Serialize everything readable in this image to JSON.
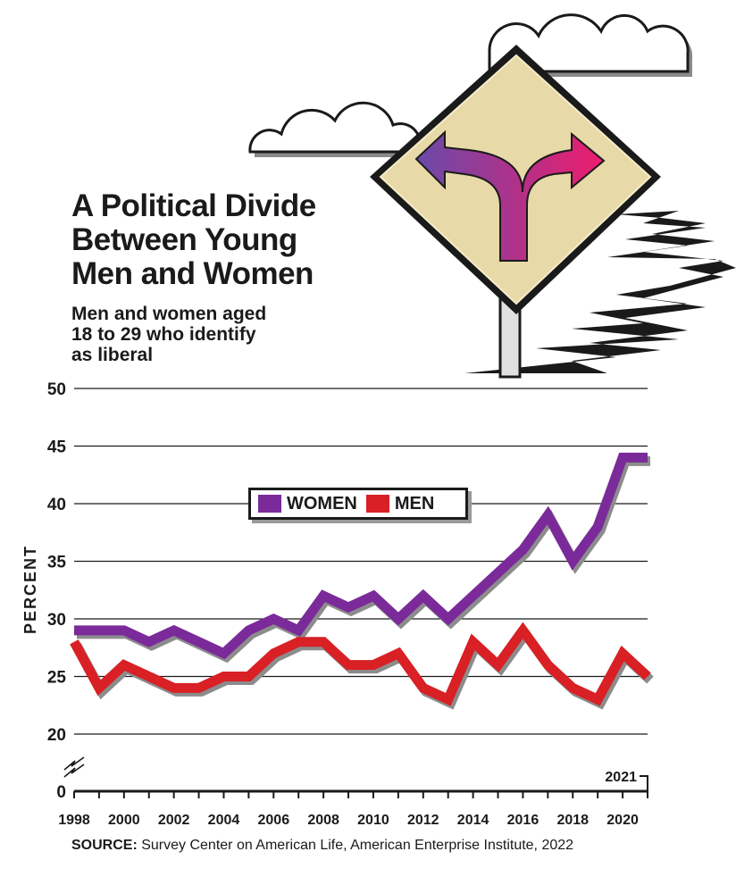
{
  "title_lines": [
    "A Political Divide",
    "Between Young",
    "Men and Women"
  ],
  "subtitle_lines": [
    "Men and women aged",
    "18 to 29 who identify",
    "as liberal"
  ],
  "source": {
    "prefix": "SOURCE:",
    "text": "Survey Center on American Life, American Enterprise Institute, 2022"
  },
  "legend": {
    "women_label": "WOMEN",
    "men_label": "MEN"
  },
  "colors": {
    "women": "#7b2a9a",
    "men": "#d82025",
    "grid": "#1a1a1a",
    "sign_fill": "#e8d9a8",
    "arrow_left": "#6a4aa8",
    "arrow_right": "#ee1c6e"
  },
  "chart_data": {
    "type": "line",
    "ylabel": "PERCENT",
    "y_ticks": [
      0,
      20,
      25,
      30,
      35,
      40,
      45,
      50
    ],
    "x_tick_labels": [
      "1998",
      "2000",
      "2002",
      "2004",
      "2006",
      "2008",
      "2010",
      "2012",
      "2014",
      "2016",
      "2018",
      "2020"
    ],
    "x_end_label": "2021",
    "ylim": [
      0,
      50
    ],
    "axis_break": true,
    "grid": true,
    "legend_position": "upper-middle",
    "x": [
      1998,
      1999,
      2000,
      2001,
      2002,
      2003,
      2004,
      2005,
      2006,
      2007,
      2008,
      2009,
      2010,
      2011,
      2012,
      2013,
      2014,
      2015,
      2016,
      2017,
      2018,
      2019,
      2020,
      2021
    ],
    "series": [
      {
        "name": "WOMEN",
        "values": [
          29,
          29,
          29,
          28,
          29,
          28,
          27,
          29,
          30,
          29,
          32,
          31,
          32,
          30,
          32,
          30,
          32,
          34,
          36,
          39,
          35,
          38,
          44,
          44
        ]
      },
      {
        "name": "MEN",
        "values": [
          28,
          24,
          26,
          25,
          24,
          24,
          25,
          25,
          27,
          28,
          28,
          26,
          26,
          27,
          24,
          23,
          28,
          26,
          29,
          26,
          24,
          23,
          27,
          25
        ]
      }
    ]
  }
}
